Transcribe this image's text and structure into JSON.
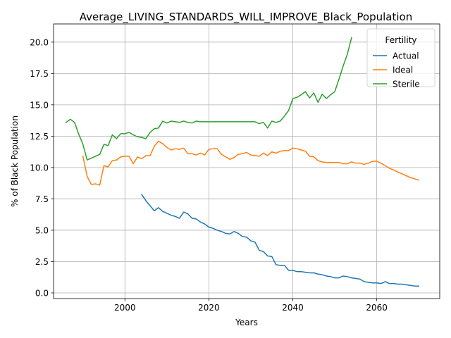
{
  "chart_data": {
    "type": "line",
    "title": "Average_LIVING_STANDARDS_WILL_IMPROVE_Black_Population",
    "xlabel": "Years",
    "ylabel": "% of Black Population",
    "xlim": [
      1983,
      2075
    ],
    "ylim": [
      -0.45,
      21.45
    ],
    "xticks": [
      2000,
      2020,
      2040,
      2060
    ],
    "yticks": [
      0.0,
      2.5,
      5.0,
      7.5,
      10.0,
      12.5,
      15.0,
      17.5,
      20.0
    ],
    "xtick_labels": [
      "2000",
      "2020",
      "2040",
      "2060"
    ],
    "ytick_labels": [
      "0.0",
      "2.5",
      "5.0",
      "7.5",
      "10.0",
      "12.5",
      "15.0",
      "17.5",
      "20.0"
    ],
    "grid": true,
    "legend": {
      "title": "Fertility",
      "placement": "top-right"
    },
    "series": [
      {
        "name": "Actual",
        "color": "#1f77b4",
        "x": [
          2004,
          2005,
          2006,
          2007,
          2008,
          2009,
          2010,
          2011,
          2012,
          2013,
          2014,
          2015,
          2016,
          2017,
          2018,
          2019,
          2020,
          2021,
          2022,
          2023,
          2024,
          2025,
          2026,
          2027,
          2028,
          2029,
          2030,
          2031,
          2032,
          2033,
          2034,
          2035,
          2036,
          2037,
          2038,
          2039,
          2040,
          2041,
          2042,
          2043,
          2044,
          2045,
          2046,
          2047,
          2048,
          2049,
          2050,
          2051,
          2052,
          2053,
          2054,
          2055,
          2056,
          2057,
          2058,
          2059,
          2060,
          2061,
          2062,
          2063,
          2064,
          2065,
          2066,
          2067,
          2068,
          2069,
          2070
        ],
        "values": [
          7.85,
          7.35,
          6.95,
          6.55,
          6.8,
          6.5,
          6.35,
          6.2,
          6.1,
          5.95,
          6.45,
          6.3,
          5.95,
          5.9,
          5.65,
          5.5,
          5.25,
          5.15,
          5.0,
          4.9,
          4.75,
          4.7,
          4.9,
          4.75,
          4.5,
          4.45,
          4.15,
          4.05,
          3.4,
          3.3,
          2.95,
          2.9,
          2.25,
          2.2,
          2.2,
          1.8,
          1.8,
          1.7,
          1.7,
          1.65,
          1.6,
          1.6,
          1.5,
          1.45,
          1.35,
          1.3,
          1.2,
          1.2,
          1.35,
          1.3,
          1.2,
          1.15,
          1.1,
          0.9,
          0.85,
          0.8,
          0.8,
          0.75,
          0.9,
          0.75,
          0.75,
          0.7,
          0.7,
          0.65,
          0.6,
          0.55,
          0.55
        ]
      },
      {
        "name": "Ideal",
        "color": "#ff7f0e",
        "x": [
          1990,
          1991,
          1992,
          1993,
          1994,
          1995,
          1996,
          1997,
          1998,
          1999,
          2000,
          2001,
          2002,
          2003,
          2004,
          2005,
          2006,
          2007,
          2008,
          2009,
          2010,
          2011,
          2012,
          2013,
          2014,
          2015,
          2016,
          2017,
          2018,
          2019,
          2020,
          2021,
          2022,
          2023,
          2024,
          2025,
          2026,
          2027,
          2028,
          2029,
          2030,
          2031,
          2032,
          2033,
          2034,
          2035,
          2036,
          2037,
          2038,
          2039,
          2040,
          2041,
          2042,
          2043,
          2044,
          2045,
          2046,
          2047,
          2048,
          2049,
          2050,
          2051,
          2052,
          2053,
          2054,
          2055,
          2056,
          2057,
          2058,
          2059,
          2060,
          2061,
          2062,
          2063,
          2064,
          2065,
          2066,
          2067,
          2068,
          2069,
          2070
        ],
        "values": [
          10.9,
          9.3,
          8.65,
          8.7,
          8.6,
          10.15,
          10.05,
          10.55,
          10.6,
          10.85,
          10.9,
          10.9,
          10.3,
          10.85,
          10.7,
          10.95,
          10.95,
          11.7,
          12.1,
          11.9,
          11.6,
          11.4,
          11.5,
          11.45,
          11.55,
          11.1,
          11.1,
          11.0,
          11.15,
          11.0,
          11.45,
          11.5,
          11.5,
          11.05,
          10.85,
          10.65,
          10.8,
          11.05,
          11.1,
          11.2,
          11.0,
          10.95,
          10.9,
          11.15,
          10.95,
          11.25,
          11.15,
          11.3,
          11.35,
          11.35,
          11.55,
          11.5,
          11.4,
          11.3,
          10.9,
          10.85,
          10.55,
          10.45,
          10.4,
          10.4,
          10.4,
          10.4,
          10.3,
          10.3,
          10.45,
          10.35,
          10.35,
          10.25,
          10.35,
          10.5,
          10.5,
          10.35,
          10.15,
          9.95,
          9.8,
          9.65,
          9.5,
          9.35,
          9.2,
          9.1,
          9.0
        ]
      },
      {
        "name": "Sterile",
        "color": "#2ca02c",
        "x": [
          1986,
          1987,
          1988,
          1989,
          1990,
          1991,
          1992,
          1993,
          1994,
          1995,
          1996,
          1997,
          1998,
          1999,
          2000,
          2001,
          2002,
          2003,
          2004,
          2005,
          2006,
          2007,
          2008,
          2009,
          2010,
          2011,
          2012,
          2013,
          2014,
          2015,
          2016,
          2017,
          2018,
          2019,
          2020,
          2021,
          2022,
          2023,
          2024,
          2025,
          2026,
          2027,
          2028,
          2029,
          2030,
          2031,
          2032,
          2033,
          2034,
          2035,
          2036,
          2037,
          2038,
          2039,
          2040,
          2041,
          2042,
          2043,
          2044,
          2045,
          2046,
          2047,
          2048,
          2049,
          2050,
          2051,
          2052,
          2053,
          2054
        ],
        "values": [
          13.6,
          13.85,
          13.6,
          12.65,
          11.85,
          10.6,
          10.75,
          10.9,
          11.05,
          11.85,
          11.75,
          12.6,
          12.3,
          12.7,
          12.7,
          12.8,
          12.6,
          12.45,
          12.4,
          12.3,
          12.8,
          13.1,
          13.15,
          13.7,
          13.55,
          13.7,
          13.65,
          13.6,
          13.7,
          13.6,
          13.55,
          13.7,
          13.65,
          13.65,
          13.65,
          13.65,
          13.65,
          13.65,
          13.65,
          13.65,
          13.65,
          13.65,
          13.65,
          13.65,
          13.65,
          13.65,
          13.5,
          13.6,
          13.15,
          13.7,
          13.6,
          13.7,
          14.1,
          14.55,
          15.5,
          15.6,
          15.8,
          16.05,
          15.55,
          15.95,
          15.2,
          15.85,
          15.5,
          15.8,
          16.05,
          17.05,
          18.1,
          19.05,
          20.35
        ]
      }
    ]
  }
}
